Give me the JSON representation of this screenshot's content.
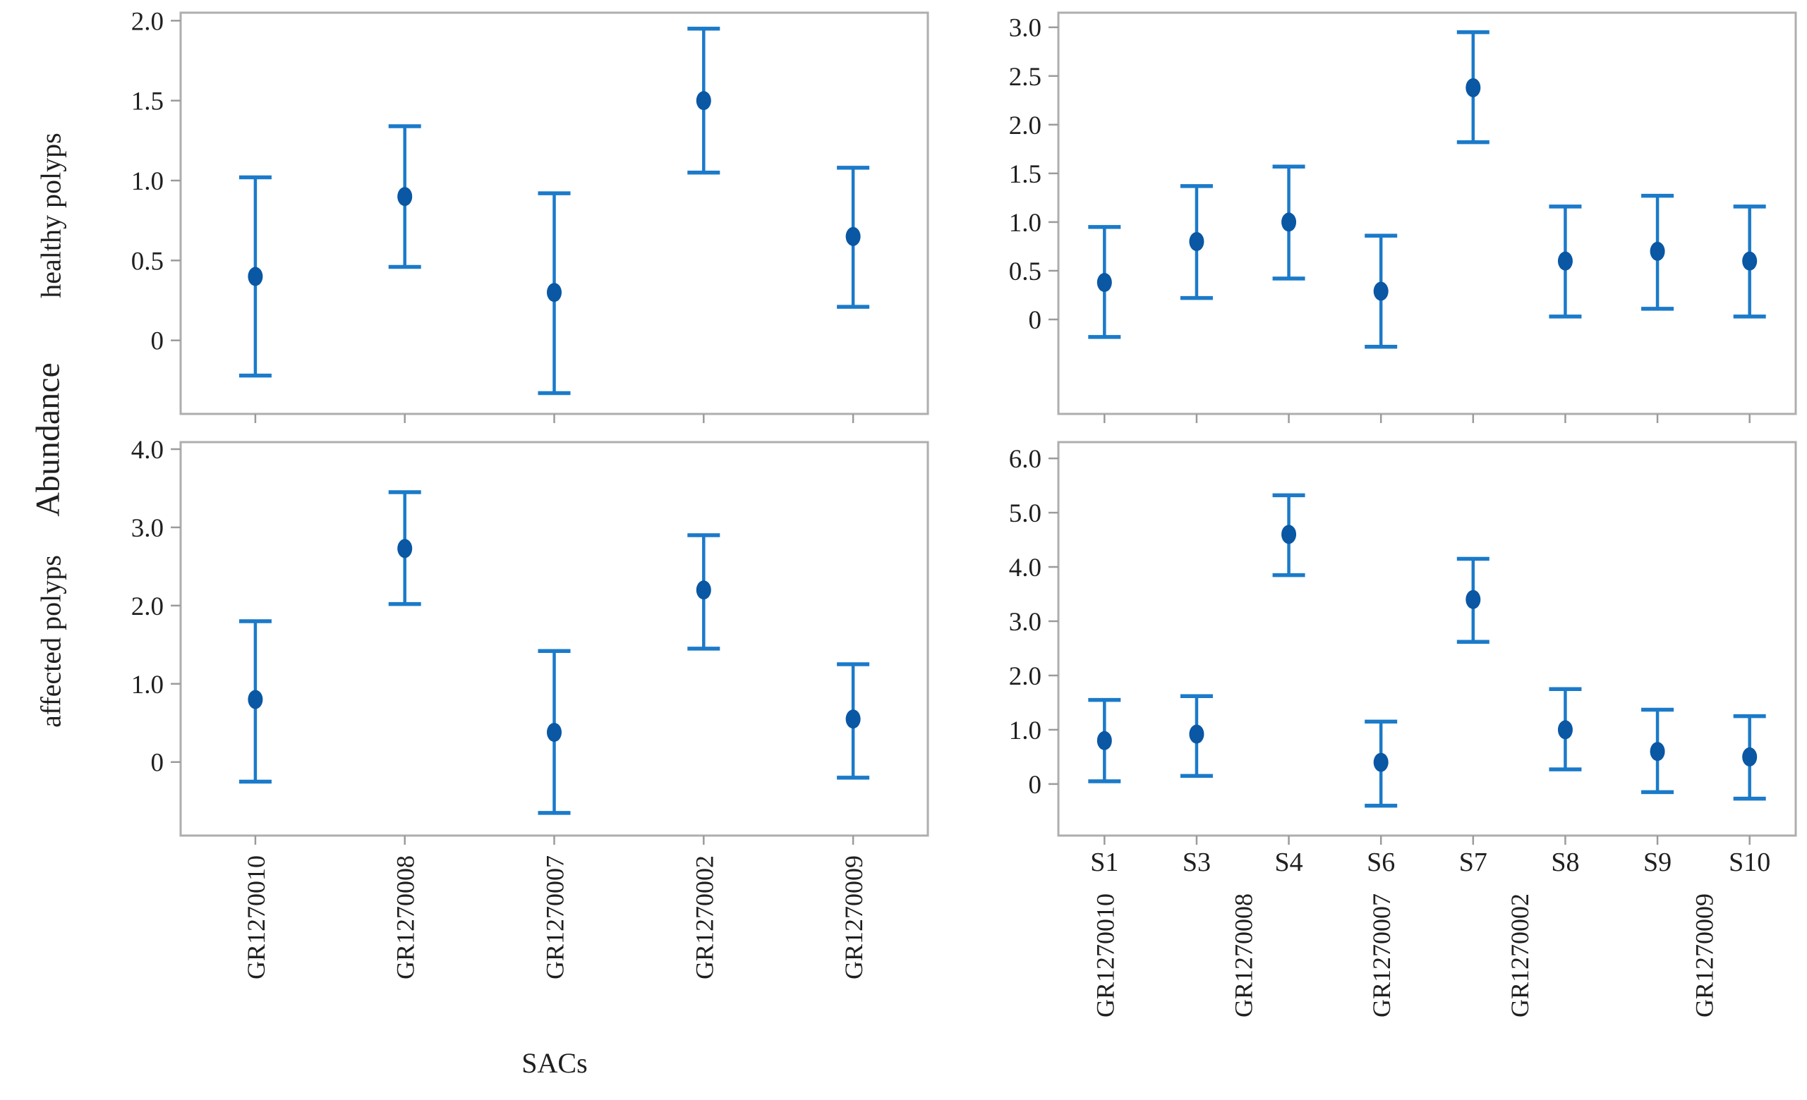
{
  "figure": {
    "y_axis_label": "Abundance",
    "left_column_x_axis_label": "SACs",
    "colors": {
      "marker": "#0a57a4",
      "error_bar": "#1b7ac9",
      "panel_border": "#aeaeae",
      "tick_mark": "#9b9b9b",
      "text": "#1f1f1f",
      "background": "#ffffff"
    }
  },
  "chart_data": [
    {
      "id": "healthy-polyps-by-sac",
      "type": "scatter",
      "row": 0,
      "col": 0,
      "ylabel": "healthy polyps",
      "categories": [
        "GR1270010",
        "GR1270008",
        "GR1270007",
        "GR1270002",
        "GR1270009"
      ],
      "series": [
        {
          "name": "mean abundance",
          "values": [
            0.4,
            0.9,
            0.3,
            1.5,
            0.65
          ]
        },
        {
          "name": "ci_low",
          "values": [
            -0.22,
            0.46,
            -0.33,
            1.05,
            0.21
          ]
        },
        {
          "name": "ci_high",
          "values": [
            1.02,
            1.34,
            0.92,
            1.95,
            1.08
          ]
        }
      ],
      "yticks": [
        0,
        0.5,
        1.0,
        1.5,
        2.0
      ],
      "ytick_labels": [
        "0",
        "0.5",
        "1.0",
        "1.5",
        "2.0"
      ],
      "ylim": [
        -0.46,
        2.05
      ],
      "grid": false,
      "legend": "none",
      "category_labels_shown": false
    },
    {
      "id": "healthy-polyps-by-station",
      "type": "scatter",
      "row": 0,
      "col": 1,
      "ylabel": "",
      "categories": [
        "S1",
        "S3",
        "S4",
        "S6",
        "S7",
        "S8",
        "S9",
        "S10"
      ],
      "series": [
        {
          "name": "mean abundance",
          "values": [
            0.38,
            0.8,
            1.0,
            0.29,
            2.38,
            0.6,
            0.7,
            0.6
          ]
        },
        {
          "name": "ci_low",
          "values": [
            -0.18,
            0.22,
            0.42,
            -0.28,
            1.82,
            0.03,
            0.11,
            0.03
          ]
        },
        {
          "name": "ci_high",
          "values": [
            0.95,
            1.37,
            1.57,
            0.86,
            2.95,
            1.16,
            1.27,
            1.16
          ]
        }
      ],
      "yticks": [
        0,
        0.5,
        1.0,
        1.5,
        2.0,
        2.5,
        3.0
      ],
      "ytick_labels": [
        "0",
        "0.5",
        "1.0",
        "1.5",
        "2.0",
        "2.5",
        "3.0"
      ],
      "ylim": [
        -0.97,
        3.15
      ],
      "grid": false,
      "legend": "none",
      "category_labels_shown": false
    },
    {
      "id": "affected-polyps-by-sac",
      "type": "scatter",
      "row": 1,
      "col": 0,
      "ylabel": "affected polyps",
      "categories": [
        "GR1270010",
        "GR1270008",
        "GR1270007",
        "GR1270002",
        "GR1270009"
      ],
      "series": [
        {
          "name": "mean abundance",
          "values": [
            0.8,
            2.73,
            0.38,
            2.2,
            0.55
          ]
        },
        {
          "name": "ci_low",
          "values": [
            -0.25,
            2.02,
            -0.65,
            1.45,
            -0.2
          ]
        },
        {
          "name": "ci_high",
          "values": [
            1.8,
            3.45,
            1.42,
            2.9,
            1.25
          ]
        }
      ],
      "yticks": [
        0,
        1.0,
        2.0,
        3.0,
        4.0
      ],
      "ytick_labels": [
        "0",
        "1.0",
        "2.0",
        "3.0",
        "4.0"
      ],
      "ylim": [
        -0.94,
        4.09
      ],
      "grid": false,
      "legend": "none",
      "category_labels_shown": true,
      "category_labels_rotated": true
    },
    {
      "id": "affected-polyps-by-station",
      "type": "scatter",
      "row": 1,
      "col": 1,
      "ylabel": "",
      "categories": [
        "S1",
        "S3",
        "S4",
        "S6",
        "S7",
        "S8",
        "S9",
        "S10"
      ],
      "series": [
        {
          "name": "mean abundance",
          "values": [
            0.8,
            0.92,
            4.6,
            0.4,
            3.4,
            1.0,
            0.6,
            0.5
          ]
        },
        {
          "name": "ci_low",
          "values": [
            0.05,
            0.15,
            3.85,
            -0.4,
            2.62,
            0.27,
            -0.15,
            -0.27
          ]
        },
        {
          "name": "ci_high",
          "values": [
            1.55,
            1.62,
            5.32,
            1.15,
            4.15,
            1.75,
            1.37,
            1.25
          ]
        }
      ],
      "yticks": [
        0,
        1.0,
        2.0,
        3.0,
        4.0,
        5.0,
        6.0
      ],
      "ytick_labels": [
        "0",
        "1.0",
        "2.0",
        "3.0",
        "4.0",
        "5.0",
        "6.0"
      ],
      "ylim": [
        -0.95,
        6.3
      ],
      "grid": false,
      "legend": "none",
      "category_labels_shown": true,
      "category_labels_rotated": false,
      "group_labels": [
        {
          "label": "GR1270010",
          "position": 0
        },
        {
          "label": "GR1270008",
          "position": 1.5
        },
        {
          "label": "GR1270007",
          "position": 3
        },
        {
          "label": "GR1270002",
          "position": 4.5
        },
        {
          "label": "GR1270009",
          "position": 6.5
        }
      ]
    }
  ]
}
